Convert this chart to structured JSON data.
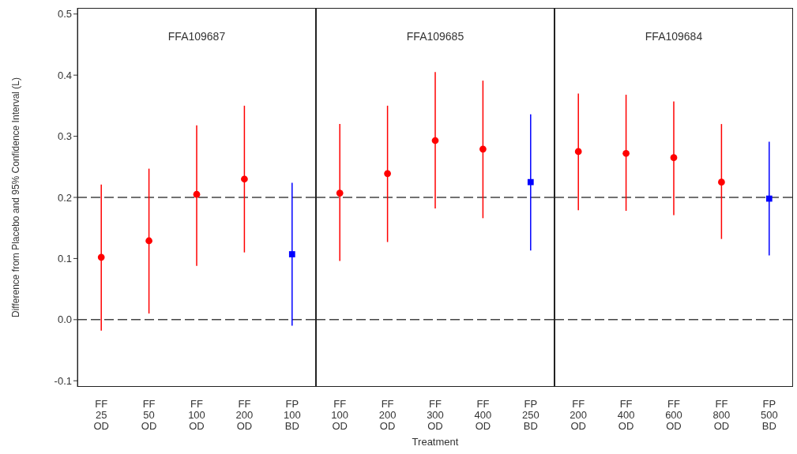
{
  "chart_data": [
    {
      "type": "scatter",
      "title": "FFA109687",
      "ylabel": "Difference from Placebo and 95% Confidence Interval (L)",
      "categories": [
        "FF 25 OD",
        "FF 50 OD",
        "FF 100 OD",
        "FF 200 OD",
        "FP 100 BD"
      ],
      "ylim": [
        -0.11,
        0.51
      ],
      "yticks": [
        -0.1,
        {
          "value": 0,
          "label": "0.0"
        },
        0.1,
        0.2,
        0.3,
        0.4,
        0.5
      ],
      "grid": false,
      "series": [
        {
          "color": "#ff0000",
          "marker": "circle",
          "values": [
            0.102,
            0.129,
            0.205,
            0.23,
            null
          ],
          "errors": [
            [
              -0.018,
              0.221
            ],
            [
              0.01,
              0.247
            ],
            [
              0.088,
              0.318
            ],
            [
              0.11,
              0.35
            ],
            null
          ]
        },
        {
          "color": "#0000ff",
          "marker": "square",
          "values": [
            null,
            null,
            null,
            null,
            0.107
          ],
          "errors": [
            null,
            null,
            null,
            null,
            [
              -0.01,
              0.224
            ]
          ]
        }
      ],
      "ref_lines": [
        {
          "axis": "y",
          "value": 0,
          "color": "#444444",
          "line_style": "dashed"
        },
        {
          "axis": "y",
          "value": 0.2,
          "color": "#444444",
          "line_style": "dashed"
        }
      ]
    },
    {
      "type": "scatter",
      "title": "FFA109685",
      "xlabel": "Treatment",
      "categories": [
        "FF 100 OD",
        "FF 200 OD",
        "FF 300 OD",
        "FF 400 OD",
        "FP 250 BD"
      ],
      "ylim": [
        -0.11,
        0.51
      ],
      "tick_labels": "x",
      "grid": false,
      "series": [
        {
          "color": "#ff0000",
          "marker": "circle",
          "values": [
            0.207,
            0.239,
            0.293,
            0.279,
            null
          ],
          "errors": [
            [
              0.096,
              0.32
            ],
            [
              0.127,
              0.35
            ],
            [
              0.182,
              0.405
            ],
            [
              0.166,
              0.391
            ],
            null
          ]
        },
        {
          "color": "#0000ff",
          "marker": "square",
          "values": [
            null,
            null,
            null,
            null,
            0.225
          ],
          "errors": [
            null,
            null,
            null,
            null,
            [
              0.113,
              0.336
            ]
          ]
        }
      ],
      "ref_lines": [
        {
          "axis": "y",
          "value": 0,
          "color": "#444444",
          "line_style": "dashed"
        },
        {
          "axis": "y",
          "value": 0.2,
          "color": "#444444",
          "line_style": "dashed"
        }
      ]
    },
    {
      "type": "scatter",
      "title": "FFA109684",
      "categories": [
        "FF 200 OD",
        "FF 400 OD",
        "FF 600 OD",
        "FF 800 OD",
        "FP 500 BD"
      ],
      "ylim": [
        -0.11,
        0.51
      ],
      "tick_labels": "x",
      "grid": false,
      "series": [
        {
          "color": "#ff0000",
          "marker": "circle",
          "values": [
            0.275,
            0.272,
            0.265,
            0.225,
            null
          ],
          "errors": [
            [
              0.179,
              0.37
            ],
            [
              0.178,
              0.368
            ],
            [
              0.171,
              0.357
            ],
            [
              0.132,
              0.32
            ],
            null
          ]
        },
        {
          "color": "#0000ff",
          "marker": "square",
          "values": [
            null,
            null,
            null,
            null,
            0.198
          ],
          "errors": [
            null,
            null,
            null,
            null,
            [
              0.105,
              0.291
            ]
          ]
        }
      ],
      "ref_lines": [
        {
          "axis": "y",
          "value": 0,
          "color": "#444444",
          "line_style": "dashed"
        },
        {
          "axis": "y",
          "value": 0.2,
          "color": "#444444",
          "line_style": "dashed"
        }
      ]
    }
  ]
}
